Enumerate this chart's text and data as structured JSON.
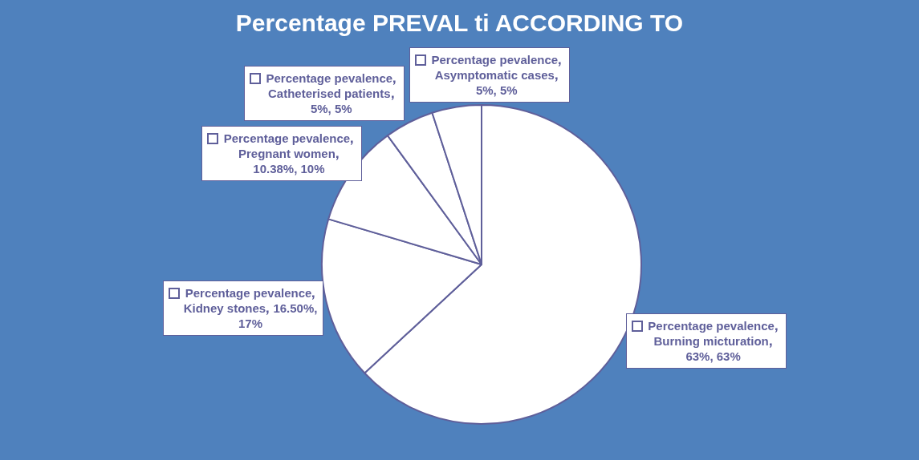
{
  "chart_data": {
    "type": "pie",
    "title": "Percentage PREVAL ti ACCORDING TO",
    "categories": [
      "Burning micturation",
      "Kidney stones",
      "Pregnant women",
      "Catheterised patients",
      "Asymptomatic cases"
    ],
    "series": [
      {
        "name": "Percentage pevalence",
        "values": [
          63,
          16.5,
          10.38,
          5,
          5
        ],
        "colors": [
          "#ffffff",
          "#ffffff",
          "#ffffff",
          "#ffffff",
          "#ffffff"
        ],
        "value_labels": [
          "63%, 63%",
          "16.50%, 17%",
          "10.38%, 10%",
          "5%, 5%",
          "5%, 5%"
        ]
      }
    ]
  }
}
